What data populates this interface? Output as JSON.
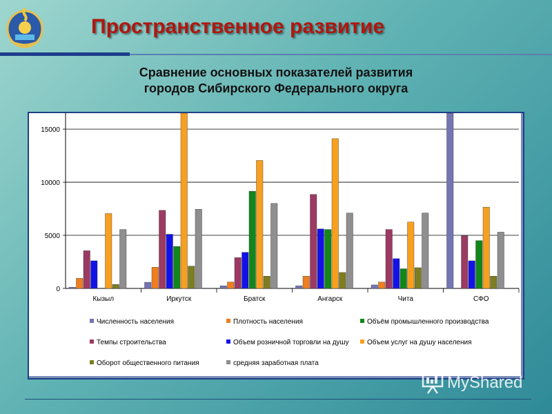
{
  "header": {
    "title": "Пространственное развитие",
    "subtitle_line1": "Сравнение основных показателей развития",
    "subtitle_line2": "городов Сибирского Федерального округа"
  },
  "watermark": {
    "text": "MyShared",
    "icon": "presentation-icon"
  },
  "colors": {
    "title": "#b0170f",
    "header_rule": "#1d3d8a",
    "chart_border": "#1e3f86"
  },
  "chart_data": {
    "type": "bar",
    "title": "",
    "xlabel": "",
    "ylabel": "",
    "ylim": [
      0,
      16500
    ],
    "yticks": [
      0,
      5000,
      10000,
      15000
    ],
    "ytick_labels": [
      "0",
      "5000",
      "10000",
      "15000"
    ],
    "grid": true,
    "legend_position": "bottom",
    "categories": [
      "Кызыл",
      "Иркутск",
      "Братск",
      "Ангарск",
      "Чита",
      "СФО"
    ],
    "series": [
      {
        "name": "Численность населения",
        "color": "#7475b3",
        "values": [
          110,
          580,
          250,
          250,
          330,
          17000
        ]
      },
      {
        "name": "Темпы строительства",
        "color": "#9c3a63",
        "values": [
          3550,
          7350,
          2900,
          8850,
          5550,
          4950
        ]
      },
      {
        "name": "Оборот общественного питания",
        "color": "#7d7d22",
        "values": [
          380,
          2100,
          1150,
          1500,
          1950,
          1150
        ]
      },
      {
        "name": "Плотность населения",
        "color": "#f07e1f",
        "values": [
          950,
          2000,
          600,
          1150,
          600,
          0
        ]
      },
      {
        "name": "Объем розничной торговли на душу",
        "color": "#1212e8",
        "values": [
          2600,
          5100,
          3400,
          5600,
          2800,
          2600
        ]
      },
      {
        "name": "средняя заработная плата",
        "color": "#8f8f8f",
        "values": [
          5550,
          7450,
          8000,
          7100,
          7100,
          5300
        ]
      },
      {
        "name": "Объём промышленного производства",
        "color": "#12861b",
        "values": [
          0,
          3950,
          9150,
          5550,
          1850,
          4500
        ]
      },
      {
        "name": "Объем услуг на душу населения",
        "color": "#f7a01f",
        "values": [
          7050,
          17000,
          12050,
          14100,
          6250,
          7650
        ]
      }
    ],
    "bar_order": [
      "Численность населения",
      "Плотность населения",
      "Темпы строительства",
      "Объем розничной торговли на душу",
      "Объём промышленного производства",
      "Объем услуг на душу населения",
      "Оборот общественного питания",
      "средняя заработная плата"
    ]
  }
}
